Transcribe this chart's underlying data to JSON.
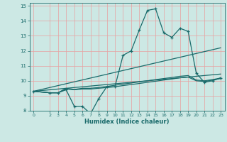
{
  "xlabel": "Humidex (Indice chaleur)",
  "bg_color": "#cce8e4",
  "line_color": "#1a6b6b",
  "grid_color": "#e8a0a0",
  "xlim": [
    -0.5,
    23.5
  ],
  "ylim": [
    8,
    15.2
  ],
  "xticks": [
    0,
    2,
    3,
    4,
    5,
    6,
    7,
    8,
    9,
    10,
    11,
    12,
    13,
    14,
    15,
    16,
    17,
    18,
    19,
    20,
    21,
    22,
    23
  ],
  "yticks": [
    8,
    9,
    10,
    11,
    12,
    13,
    14,
    15
  ],
  "line_main": {
    "x": [
      0,
      2,
      3,
      4,
      5,
      6,
      7,
      8,
      9,
      10,
      11,
      12,
      13,
      14,
      15,
      16,
      17,
      18,
      19,
      20,
      21,
      22,
      23
    ],
    "y": [
      9.3,
      9.2,
      9.2,
      9.4,
      8.3,
      8.3,
      7.8,
      8.8,
      9.6,
      9.6,
      11.7,
      12.0,
      13.4,
      14.7,
      14.8,
      13.2,
      12.9,
      13.5,
      13.3,
      10.5,
      9.9,
      10.0,
      10.2
    ]
  },
  "line_flat1": {
    "x": [
      0,
      2,
      3,
      4,
      5,
      6,
      7,
      8,
      9,
      10,
      11,
      12,
      13,
      14,
      15,
      16,
      17,
      18,
      19,
      20,
      21,
      22,
      23
    ],
    "y": [
      9.3,
      9.2,
      9.2,
      9.45,
      9.4,
      9.45,
      9.45,
      9.5,
      9.55,
      9.6,
      9.68,
      9.75,
      9.82,
      9.9,
      9.97,
      10.05,
      10.12,
      10.2,
      10.25,
      10.0,
      9.95,
      10.05,
      10.15
    ]
  },
  "line_straight1": {
    "x": [
      0,
      23
    ],
    "y": [
      9.3,
      10.45
    ]
  },
  "line_straight2": {
    "x": [
      0,
      23
    ],
    "y": [
      9.3,
      12.2
    ]
  },
  "line_flat2": {
    "x": [
      0,
      2,
      3,
      4,
      5,
      6,
      7,
      8,
      9,
      10,
      11,
      12,
      13,
      14,
      15,
      16,
      17,
      18,
      19,
      20,
      21,
      22,
      23
    ],
    "y": [
      9.3,
      9.2,
      9.2,
      9.5,
      9.42,
      9.5,
      9.5,
      9.55,
      9.62,
      9.7,
      9.78,
      9.85,
      9.93,
      10.0,
      10.08,
      10.15,
      10.22,
      10.3,
      10.35,
      10.05,
      10.0,
      10.08,
      10.18
    ]
  }
}
